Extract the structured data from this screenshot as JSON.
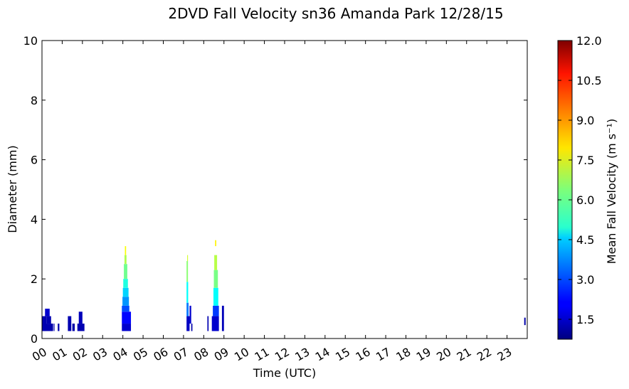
{
  "chart_data": {
    "type": "heatmap",
    "title": "2DVD Fall Velocity sn36 Amanda Park 12/28/15",
    "xlabel": "Time (UTC)",
    "ylabel": "Diameter (mm)",
    "xlim": [
      0,
      24
    ],
    "ylim": [
      0,
      10
    ],
    "x_tick_labels": [
      "00",
      "01",
      "02",
      "03",
      "04",
      "05",
      "06",
      "07",
      "08",
      "09",
      "10",
      "11",
      "12",
      "13",
      "14",
      "15",
      "16",
      "17",
      "18",
      "19",
      "20",
      "21",
      "22",
      "23"
    ],
    "y_tick_labels": [
      "0",
      "2",
      "4",
      "6",
      "8",
      "10"
    ],
    "colorbar": {
      "label": "Mean Fall Velocity (m s⁻¹)",
      "range": [
        0.75,
        12.0
      ],
      "tick_values": [
        1.5,
        3.0,
        4.5,
        6.0,
        7.5,
        9.0,
        10.5,
        12.0
      ],
      "tick_labels": [
        "1.5",
        "3.0",
        "4.5",
        "6.0",
        "7.5",
        "9.0",
        "10.5",
        "12.0"
      ],
      "colormap": "jet"
    },
    "cells": [
      {
        "t0": 0.0,
        "t1": 0.22,
        "d0": 0.25,
        "d1": 0.75,
        "v": 1.3
      },
      {
        "t0": 0.0,
        "t1": 0.5,
        "d0": 0.25,
        "d1": 0.5,
        "v": 1.3
      },
      {
        "t0": 0.15,
        "t1": 0.38,
        "d0": 0.75,
        "d1": 1.0,
        "v": 1.6
      },
      {
        "t0": 0.22,
        "t1": 0.45,
        "d0": 0.5,
        "d1": 0.75,
        "v": 1.3
      },
      {
        "t0": 0.45,
        "t1": 0.55,
        "d0": 0.25,
        "d1": 0.5,
        "v": 1.2
      },
      {
        "t0": 0.58,
        "t1": 0.62,
        "d0": 0.25,
        "d1": 0.5,
        "v": 1.3
      },
      {
        "t0": 0.78,
        "t1": 0.86,
        "d0": 0.25,
        "d1": 0.5,
        "v": 1.2
      },
      {
        "t0": 1.28,
        "t1": 1.45,
        "d0": 0.25,
        "d1": 0.75,
        "v": 1.3
      },
      {
        "t0": 1.5,
        "t1": 1.62,
        "d0": 0.25,
        "d1": 0.5,
        "v": 1.2
      },
      {
        "t0": 1.75,
        "t1": 2.1,
        "d0": 0.25,
        "d1": 0.5,
        "v": 1.3
      },
      {
        "t0": 1.82,
        "t1": 2.0,
        "d0": 0.5,
        "d1": 0.9,
        "v": 1.4
      },
      {
        "t0": 3.95,
        "t1": 4.4,
        "d0": 0.25,
        "d1": 0.5,
        "v": 1.6
      },
      {
        "t0": 3.95,
        "t1": 4.4,
        "d0": 0.5,
        "d1": 0.9,
        "v": 2.2
      },
      {
        "t0": 3.95,
        "t1": 4.32,
        "d0": 0.9,
        "d1": 1.1,
        "v": 3.0
      },
      {
        "t0": 3.98,
        "t1": 4.3,
        "d0": 1.1,
        "d1": 1.4,
        "v": 3.8
      },
      {
        "t0": 4.0,
        "t1": 4.28,
        "d0": 1.4,
        "d1": 1.7,
        "v": 4.5
      },
      {
        "t0": 4.02,
        "t1": 4.25,
        "d0": 1.7,
        "d1": 2.0,
        "v": 5.3
      },
      {
        "t0": 4.05,
        "t1": 4.22,
        "d0": 2.0,
        "d1": 2.5,
        "v": 6.2
      },
      {
        "t0": 4.08,
        "t1": 4.18,
        "d0": 2.5,
        "d1": 2.8,
        "v": 6.9
      },
      {
        "t0": 4.1,
        "t1": 4.16,
        "d0": 2.8,
        "d1": 3.1,
        "v": 7.7
      },
      {
        "t0": 7.15,
        "t1": 7.3,
        "d0": 0.25,
        "d1": 0.75,
        "v": 1.5
      },
      {
        "t0": 7.15,
        "t1": 7.25,
        "d0": 0.75,
        "d1": 1.2,
        "v": 3.5
      },
      {
        "t0": 7.15,
        "t1": 7.23,
        "d0": 1.2,
        "d1": 1.9,
        "v": 5.0
      },
      {
        "t0": 7.15,
        "t1": 7.22,
        "d0": 1.9,
        "d1": 2.6,
        "v": 6.5
      },
      {
        "t0": 7.18,
        "t1": 7.22,
        "d0": 2.6,
        "d1": 2.8,
        "v": 7.3
      },
      {
        "t0": 7.3,
        "t1": 7.38,
        "d0": 0.5,
        "d1": 1.1,
        "v": 1.6
      },
      {
        "t0": 7.38,
        "t1": 7.44,
        "d0": 0.25,
        "d1": 0.5,
        "v": 1.2
      },
      {
        "t0": 8.18,
        "t1": 8.24,
        "d0": 0.25,
        "d1": 0.75,
        "v": 1.3
      },
      {
        "t0": 8.4,
        "t1": 8.75,
        "d0": 0.25,
        "d1": 0.75,
        "v": 1.6
      },
      {
        "t0": 8.45,
        "t1": 8.75,
        "d0": 0.75,
        "d1": 1.1,
        "v": 2.8
      },
      {
        "t0": 8.48,
        "t1": 8.72,
        "d0": 1.1,
        "d1": 1.7,
        "v": 5.0
      },
      {
        "t0": 8.5,
        "t1": 8.7,
        "d0": 1.7,
        "d1": 2.3,
        "v": 6.3
      },
      {
        "t0": 8.52,
        "t1": 8.66,
        "d0": 2.3,
        "d1": 2.8,
        "v": 7.0
      },
      {
        "t0": 8.56,
        "t1": 8.62,
        "d0": 3.1,
        "d1": 3.3,
        "v": 7.9
      },
      {
        "t0": 8.9,
        "t1": 9.0,
        "d0": 0.25,
        "d1": 1.1,
        "v": 1.4
      },
      {
        "t0": 23.85,
        "t1": 23.92,
        "d0": 0.45,
        "d1": 0.7,
        "v": 1.2
      }
    ]
  }
}
